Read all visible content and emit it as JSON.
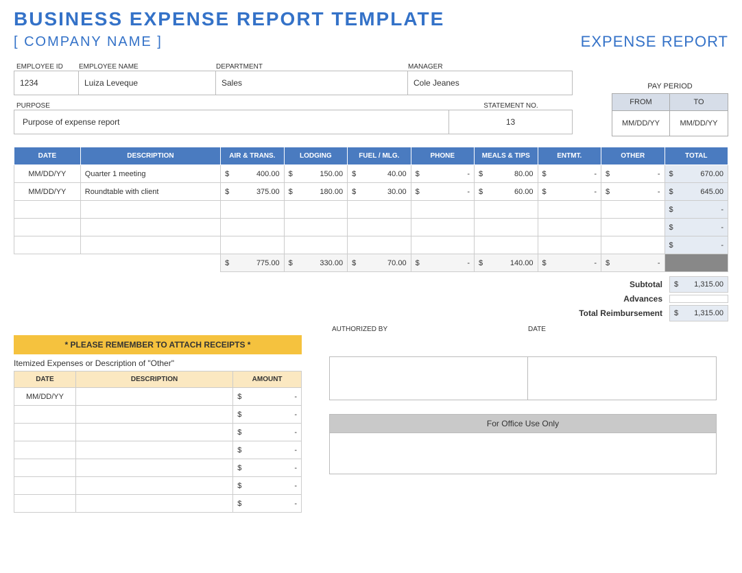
{
  "title": "BUSINESS EXPENSE REPORT TEMPLATE",
  "company_name": "[ COMPANY NAME ]",
  "report_label": "EXPENSE REPORT",
  "colors": {
    "accent": "#3472c8",
    "table_header": "#4a7bc0",
    "shaded": "#e5ebf3",
    "banner": "#f5c23e",
    "item_header": "#fbe8c1",
    "pp_header": "#d6dde8",
    "office_header": "#c9c9c9",
    "border": "#cccccc",
    "sum_dark": "#888888"
  },
  "labels": {
    "employee_id": "EMPLOYEE ID",
    "employee_name": "EMPLOYEE NAME",
    "department": "DEPARTMENT",
    "manager": "MANAGER",
    "purpose": "PURPOSE",
    "statement_no": "STATEMENT NO.",
    "pay_period": "PAY PERIOD",
    "from": "FROM",
    "to": "TO",
    "authorized_by": "AUTHORIZED BY",
    "date": "DATE",
    "office_only": "For Office Use Only"
  },
  "employee": {
    "id": "1234",
    "name": "Luiza Leveque",
    "department": "Sales",
    "manager": "Cole Jeanes"
  },
  "purpose": "Purpose of expense report",
  "statement_no": "13",
  "pay_period": {
    "from": "MM/DD/YY",
    "to": "MM/DD/YY"
  },
  "table_headers": {
    "date": "DATE",
    "description": "DESCRIPTION",
    "air": "AIR & TRANS.",
    "lodging": "LODGING",
    "fuel": "FUEL / MLG.",
    "phone": "PHONE",
    "meals": "MEALS & TIPS",
    "entmt": "ENTMT.",
    "other": "OTHER",
    "total": "TOTAL"
  },
  "rows": [
    {
      "date": "MM/DD/YY",
      "desc": "Quarter 1 meeting",
      "air": "400.00",
      "lodging": "150.00",
      "fuel": "40.00",
      "phone": "-",
      "meals": "80.00",
      "entmt": "-",
      "other": "-",
      "total": "670.00"
    },
    {
      "date": "MM/DD/YY",
      "desc": "Roundtable with client",
      "air": "375.00",
      "lodging": "180.00",
      "fuel": "30.00",
      "phone": "-",
      "meals": "60.00",
      "entmt": "-",
      "other": "-",
      "total": "645.00"
    },
    {
      "date": "",
      "desc": "",
      "air": "",
      "lodging": "",
      "fuel": "",
      "phone": "",
      "meals": "",
      "entmt": "",
      "other": "",
      "total": "-"
    },
    {
      "date": "",
      "desc": "",
      "air": "",
      "lodging": "",
      "fuel": "",
      "phone": "",
      "meals": "",
      "entmt": "",
      "other": "",
      "total": "-"
    },
    {
      "date": "",
      "desc": "",
      "air": "",
      "lodging": "",
      "fuel": "",
      "phone": "",
      "meals": "",
      "entmt": "",
      "other": "",
      "total": "-"
    }
  ],
  "column_totals": {
    "air": "775.00",
    "lodging": "330.00",
    "fuel": "70.00",
    "phone": "-",
    "meals": "140.00",
    "entmt": "-",
    "other": "-"
  },
  "summary": {
    "subtotal_label": "Subtotal",
    "subtotal": "1,315.00",
    "advances_label": "Advances",
    "advances": "",
    "total_label": "Total Reimbursement",
    "total": "1,315.00"
  },
  "receipts_banner": "* PLEASE REMEMBER TO ATTACH RECEIPTS *",
  "itemized_label": "Itemized Expenses or Description of \"Other\"",
  "item_headers": {
    "date": "DATE",
    "description": "DESCRIPTION",
    "amount": "AMOUNT"
  },
  "item_rows": [
    {
      "date": "MM/DD/YY",
      "desc": "",
      "amount": "-"
    },
    {
      "date": "",
      "desc": "",
      "amount": "-"
    },
    {
      "date": "",
      "desc": "",
      "amount": "-"
    },
    {
      "date": "",
      "desc": "",
      "amount": "-"
    },
    {
      "date": "",
      "desc": "",
      "amount": "-"
    },
    {
      "date": "",
      "desc": "",
      "amount": "-"
    },
    {
      "date": "",
      "desc": "",
      "amount": "-"
    }
  ],
  "currency": "$"
}
